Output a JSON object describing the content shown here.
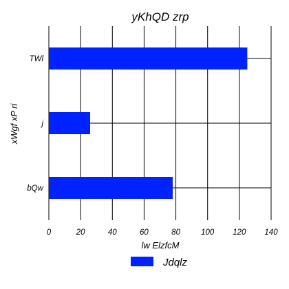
{
  "chart_data": {
    "type": "bar",
    "orientation": "horizontal",
    "title": "yKhQD zrp",
    "xlabel": "lw ElzfcM",
    "ylabel": "xWgf xP   ri",
    "categories": [
      "TWl",
      "j",
      "bQw"
    ],
    "series": [
      {
        "name": "Jdqlz",
        "values": [
          125,
          26,
          78
        ],
        "color": "#0022ff"
      }
    ],
    "xlim": [
      0,
      140
    ],
    "xticks": [
      0,
      20,
      40,
      60,
      80,
      100,
      120,
      140
    ],
    "grid": true,
    "legend_position": "bottom-center"
  }
}
